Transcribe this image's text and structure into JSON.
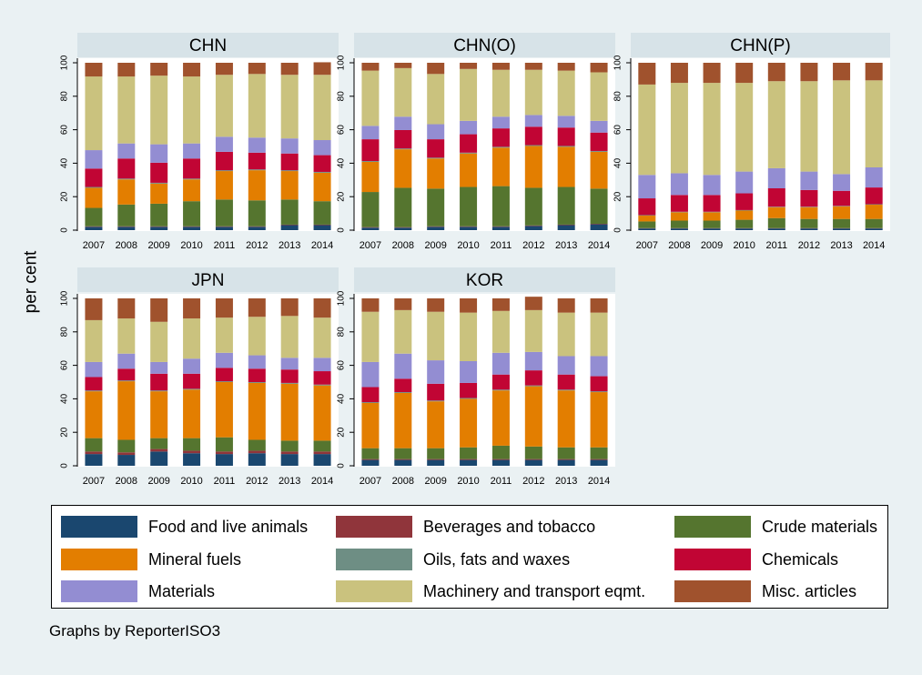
{
  "ylabel": "per cent",
  "note": "Graphs by ReporterISO3",
  "chart_data": {
    "type": "bar",
    "stacked": true,
    "ylim": [
      0,
      100
    ],
    "yticks": [
      0,
      20,
      40,
      60,
      80,
      100
    ],
    "grid": false,
    "legend_position": "bottom",
    "categories": [
      "2007",
      "2008",
      "2009",
      "2010",
      "2011",
      "2012",
      "2013",
      "2014"
    ],
    "series_defs": [
      {
        "name": "Food and live animals",
        "color": "#1a476f"
      },
      {
        "name": "Beverages and tobacco",
        "color": "#90353b"
      },
      {
        "name": "Crude materials",
        "color": "#55752f"
      },
      {
        "name": "Mineral fuels",
        "color": "#e37e00"
      },
      {
        "name": "Oils, fats and waxes",
        "color": "#6e8e84"
      },
      {
        "name": "Chemicals",
        "color": "#c10534"
      },
      {
        "name": "Materials",
        "color": "#938dd2"
      },
      {
        "name": "Machinery and transport eqmt.",
        "color": "#cac27e"
      },
      {
        "name": "Misc. articles",
        "color": "#a0522d"
      }
    ],
    "panels": [
      {
        "title": "CHN",
        "series": [
          [
            2,
            2,
            2,
            2,
            2,
            2,
            3,
            3
          ],
          [
            0.3,
            0.3,
            0.3,
            0.3,
            0.3,
            0.3,
            0.3,
            0.3
          ],
          [
            11,
            13,
            13.5,
            15,
            16,
            15.5,
            15,
            14
          ],
          [
            12,
            15,
            12,
            13,
            17,
            18,
            17,
            17
          ],
          [
            0.5,
            0.5,
            0.5,
            0.5,
            0.5,
            0.5,
            0.5,
            0.5
          ],
          [
            11,
            12,
            12,
            12,
            11,
            10,
            10,
            10
          ],
          [
            11,
            9,
            11,
            9,
            9,
            9,
            9,
            9
          ],
          [
            44,
            40,
            41,
            40,
            37,
            38,
            38,
            39
          ],
          [
            8.2,
            8.2,
            7.7,
            8.2,
            7.2,
            6.7,
            7.2,
            7.5
          ]
        ]
      },
      {
        "title": "CHN(O)",
        "series": [
          [
            1.5,
            1.5,
            2,
            2,
            2,
            2.5,
            3,
            3.5
          ],
          [
            0.3,
            0.3,
            0.3,
            0.3,
            0.3,
            0.3,
            0.3,
            0.3
          ],
          [
            21,
            23.5,
            22.5,
            23.5,
            24,
            22.5,
            22.5,
            21
          ],
          [
            18,
            23,
            18,
            20,
            23,
            25,
            24,
            22
          ],
          [
            0.5,
            0.5,
            0.5,
            0.5,
            0.5,
            0.5,
            0.5,
            0.5
          ],
          [
            13,
            11,
            11,
            11,
            11,
            11,
            11,
            11
          ],
          [
            8,
            8,
            9,
            8,
            7,
            7,
            7,
            7
          ],
          [
            33,
            29,
            30,
            31,
            28,
            27,
            27,
            29
          ],
          [
            4.7,
            3.2,
            6.7,
            3.7,
            4.2,
            4.2,
            4.7,
            5.7
          ]
        ]
      },
      {
        "title": "CHN(P)",
        "series": [
          [
            1,
            1,
            1,
            1,
            1,
            1,
            1,
            1
          ],
          [
            0.2,
            0.2,
            0.2,
            0.2,
            0.2,
            0.2,
            0.2,
            0.2
          ],
          [
            4,
            4.5,
            4.5,
            5,
            6,
            5.5,
            5.5,
            5.5
          ],
          [
            3.5,
            5,
            5,
            5.5,
            6.5,
            7,
            7.5,
            8.5
          ],
          [
            0.3,
            0.3,
            0.3,
            0.3,
            0.3,
            0.3,
            0.3,
            0.3
          ],
          [
            10,
            10,
            10,
            10,
            11,
            10,
            9,
            10
          ],
          [
            14,
            13,
            12,
            13,
            12,
            11,
            10,
            12
          ],
          [
            54,
            54,
            55,
            53,
            52,
            54,
            56,
            52
          ],
          [
            13,
            12,
            12,
            12,
            11,
            11,
            10.5,
            10.5
          ]
        ]
      },
      {
        "title": "JPN",
        "series": [
          [
            7,
            6.5,
            8.5,
            7.5,
            7,
            7.5,
            7,
            7
          ],
          [
            1.5,
            1.5,
            1.5,
            1.5,
            1.5,
            1.5,
            1.5,
            1.5
          ],
          [
            8,
            7.5,
            6.5,
            7.5,
            8.5,
            6.5,
            6.5,
            6.5
          ],
          [
            28,
            35,
            28,
            29,
            33,
            34,
            34,
            33
          ],
          [
            0.5,
            0.5,
            0.5,
            0.5,
            0.5,
            0.5,
            0.5,
            0.5
          ],
          [
            8,
            7,
            10,
            9,
            8,
            8,
            8,
            8
          ],
          [
            9,
            9,
            7,
            9,
            9,
            8,
            7,
            8
          ],
          [
            25,
            21,
            24,
            24,
            21,
            23,
            25,
            24
          ],
          [
            13,
            12,
            14,
            12,
            11.5,
            11,
            10.5,
            11.5
          ]
        ]
      },
      {
        "title": "KOR",
        "series": [
          [
            3.5,
            3.5,
            3.5,
            3.5,
            3.5,
            3.5,
            3.5,
            3.5
          ],
          [
            0.5,
            0.5,
            0.5,
            0.5,
            0.5,
            0.5,
            0.5,
            0.5
          ],
          [
            6.5,
            6.5,
            6.5,
            7,
            8,
            7.5,
            7,
            7
          ],
          [
            27,
            33,
            28,
            29,
            33,
            36,
            34,
            33
          ],
          [
            0.5,
            0.5,
            0.5,
            0.5,
            0.5,
            0.5,
            0.5,
            0.5
          ],
          [
            9,
            8,
            10,
            9,
            9,
            9,
            9,
            9
          ],
          [
            15,
            15,
            14,
            13,
            13,
            11,
            11,
            12
          ],
          [
            30,
            26,
            29,
            29,
            25,
            25,
            26,
            26
          ],
          [
            8,
            7,
            8,
            8.5,
            7.5,
            8,
            8.5,
            8.5
          ]
        ]
      }
    ]
  }
}
